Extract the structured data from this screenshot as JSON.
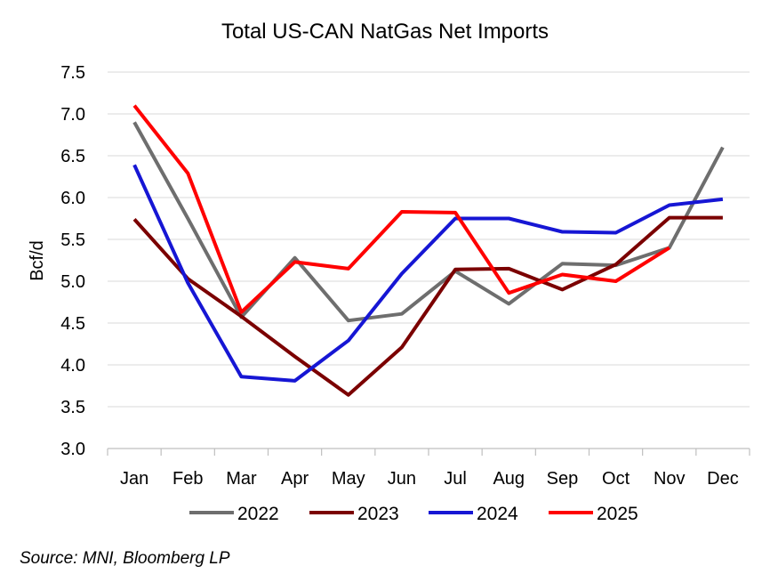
{
  "chart_data": {
    "type": "line",
    "title": "Total US-CAN NatGas Net Imports",
    "xlabel": "",
    "ylabel": "Bcf/d",
    "ylim": [
      3.0,
      7.5
    ],
    "ytick_step": 0.5,
    "y_tick_labels": [
      "3.0",
      "3.5",
      "4.0",
      "4.5",
      "5.0",
      "5.5",
      "6.0",
      "6.5",
      "7.0",
      "7.5"
    ],
    "categories": [
      "Jan",
      "Feb",
      "Mar",
      "Apr",
      "May",
      "Jun",
      "Jul",
      "Aug",
      "Sep",
      "Oct",
      "Nov",
      "Dec"
    ],
    "grid": true,
    "legend_position": "bottom",
    "series": [
      {
        "name": "2022",
        "color": "#6e6e6e",
        "values": [
          6.9,
          5.75,
          4.57,
          5.28,
          4.53,
          4.61,
          5.12,
          4.73,
          5.21,
          5.19,
          5.4,
          6.6
        ]
      },
      {
        "name": "2023",
        "color": "#7b0000",
        "values": [
          5.74,
          5.03,
          4.58,
          4.1,
          3.64,
          4.21,
          5.14,
          5.15,
          4.9,
          5.2,
          5.76,
          5.76
        ]
      },
      {
        "name": "2024",
        "color": "#1616d4",
        "values": [
          6.39,
          4.98,
          3.86,
          3.81,
          4.29,
          5.09,
          5.75,
          5.75,
          5.59,
          5.58,
          5.91,
          5.98
        ]
      },
      {
        "name": "2025",
        "color": "#ff0000",
        "values": [
          7.1,
          6.29,
          4.63,
          5.23,
          5.15,
          5.83,
          5.82,
          4.86,
          5.08,
          5.0,
          5.4,
          null
        ]
      }
    ]
  },
  "source": "Source: MNI, Bloomberg LP"
}
